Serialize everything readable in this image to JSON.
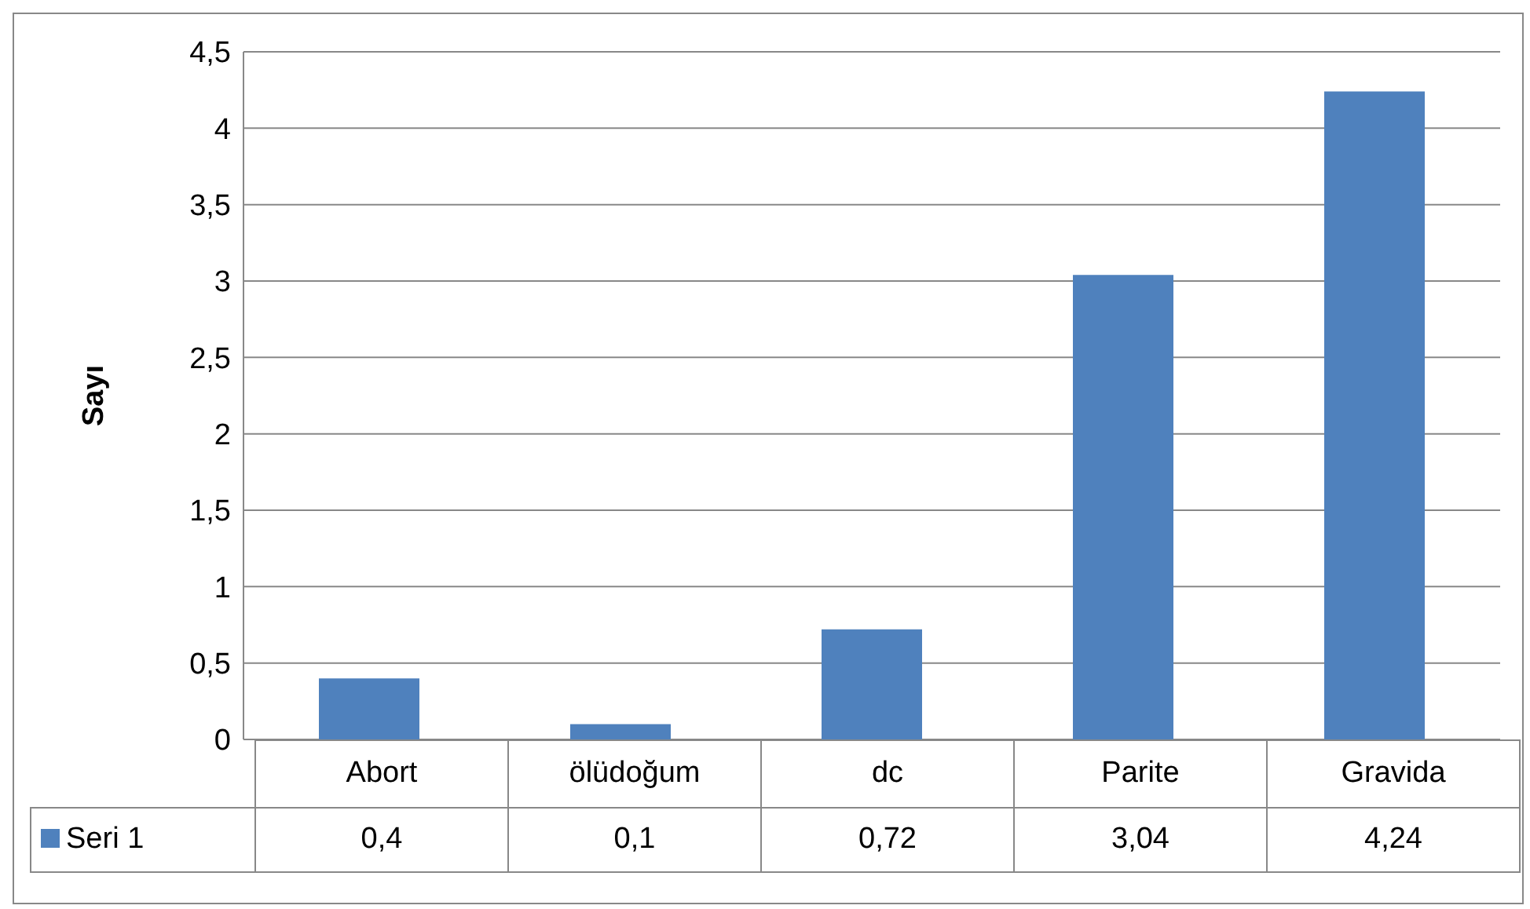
{
  "chart_data": {
    "type": "bar",
    "ylabel": "Sayı",
    "categories": [
      "Abort",
      "ölüdoğum",
      "dc",
      "Parite",
      "Gravida"
    ],
    "series": [
      {
        "name": "Seri 1",
        "color": "#4f81bd",
        "values": [
          0.4,
          0.1,
          0.72,
          3.04,
          4.24
        ],
        "value_labels": [
          "0,4",
          "0,1",
          "0,72",
          "3,04",
          "4,24"
        ]
      }
    ],
    "ylim": [
      0,
      4.5
    ],
    "yticks": [
      0,
      {
        "value": 0.5,
        "label": "0,5"
      },
      1,
      {
        "value": 1.5,
        "label": "1,5"
      },
      2,
      {
        "value": 2.5,
        "label": "2,5"
      },
      3,
      {
        "value": 3.5,
        "label": "3,5"
      },
      4,
      {
        "value": 4.5,
        "label": "4,5"
      }
    ],
    "grid": "y",
    "legend": "bottom"
  }
}
